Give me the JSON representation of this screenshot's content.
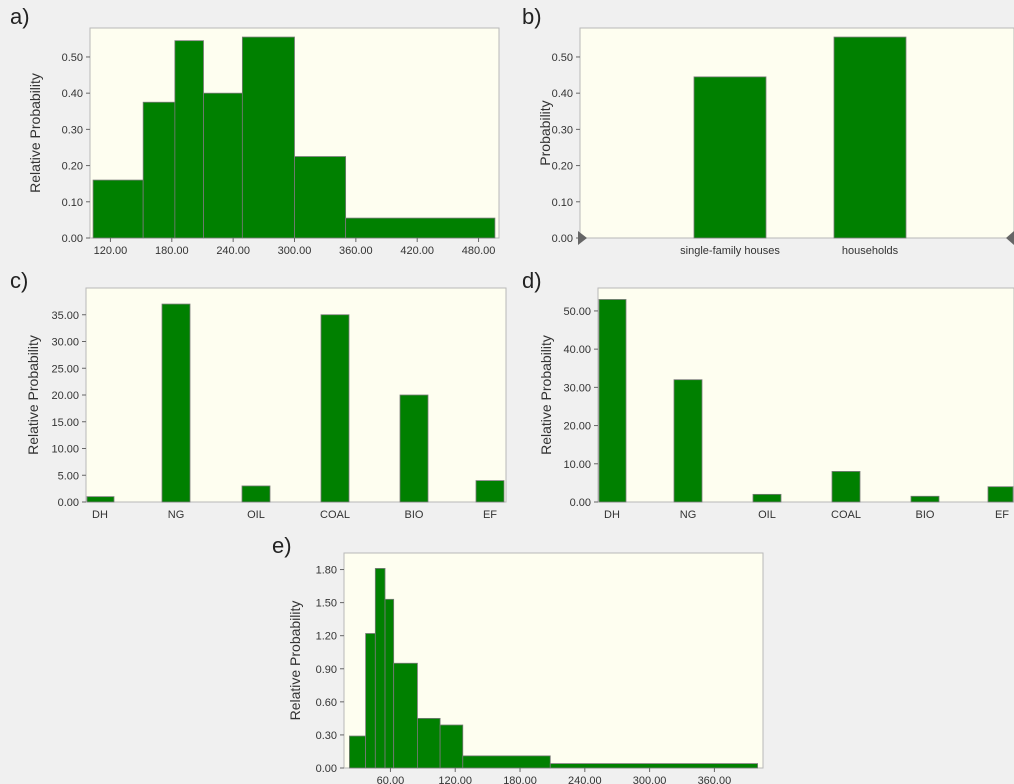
{
  "colors": {
    "bar": "#008000",
    "plot_background": "#fefef0",
    "page_background": "#f0f0f0"
  },
  "chart_data": [
    {
      "id": "a",
      "panel_label": "a)",
      "type": "histogram",
      "ylabel": "Relative Probability",
      "xlim": [
        100,
        500
      ],
      "ylim": [
        0,
        0.58
      ],
      "xticks": [
        120,
        180,
        240,
        300,
        360,
        420,
        480
      ],
      "xtick_labels": [
        "120.00",
        "180.00",
        "240.00",
        "300.00",
        "360.00",
        "420.00",
        "480.00"
      ],
      "yticks": [
        0,
        0.1,
        0.2,
        0.3,
        0.4,
        0.5
      ],
      "ytick_labels": [
        "0.00",
        "0.10",
        "0.20",
        "0.30",
        "0.40",
        "0.50"
      ],
      "bins": [
        {
          "x0": 103,
          "x1": 152,
          "value": 0.16
        },
        {
          "x0": 152,
          "x1": 183,
          "value": 0.375
        },
        {
          "x0": 183,
          "x1": 211,
          "value": 0.545
        },
        {
          "x0": 211,
          "x1": 249,
          "value": 0.4
        },
        {
          "x0": 249,
          "x1": 300,
          "value": 0.555
        },
        {
          "x0": 300,
          "x1": 350,
          "value": 0.225
        },
        {
          "x0": 350,
          "x1": 496,
          "value": 0.055
        }
      ]
    },
    {
      "id": "b",
      "panel_label": "b)",
      "type": "bar",
      "ylabel": "Probability",
      "ylim": [
        0,
        0.58
      ],
      "yticks": [
        0,
        0.1,
        0.2,
        0.3,
        0.4,
        0.5
      ],
      "ytick_labels": [
        "0.00",
        "0.10",
        "0.20",
        "0.30",
        "0.40",
        "0.50"
      ],
      "categories": [
        "single-family houses",
        "households"
      ],
      "values": [
        0.445,
        0.555
      ]
    },
    {
      "id": "c",
      "panel_label": "c)",
      "type": "bar",
      "ylabel": "Relative Probability",
      "ylim": [
        0,
        40
      ],
      "yticks": [
        0,
        5,
        10,
        15,
        20,
        25,
        30,
        35
      ],
      "ytick_labels": [
        "0.00",
        "5.00",
        "10.00",
        "15.00",
        "20.00",
        "25.00",
        "30.00",
        "35.00"
      ],
      "categories": [
        "DH",
        "NG",
        "OIL",
        "COAL",
        "BIO",
        "EF"
      ],
      "values": [
        1,
        37,
        3,
        35,
        20,
        4
      ]
    },
    {
      "id": "d",
      "panel_label": "d)",
      "type": "bar",
      "ylabel": "Relative Probability",
      "ylim": [
        0,
        56
      ],
      "yticks": [
        0,
        10,
        20,
        30,
        40,
        50
      ],
      "ytick_labels": [
        "0.00",
        "10.00",
        "20.00",
        "30.00",
        "40.00",
        "50.00"
      ],
      "categories": [
        "DH",
        "NG",
        "OIL",
        "COAL",
        "BIO",
        "EF"
      ],
      "values": [
        53,
        32,
        2,
        8,
        1.5,
        4
      ]
    },
    {
      "id": "e",
      "panel_label": "e)",
      "type": "histogram",
      "ylabel": "Relative Probability",
      "xlim": [
        17,
        405
      ],
      "ylim": [
        0,
        1.95
      ],
      "xticks": [
        60,
        120,
        180,
        240,
        300,
        360
      ],
      "xtick_labels": [
        "60.00",
        "120.00",
        "180.00",
        "240.00",
        "300.00",
        "360.00"
      ],
      "yticks": [
        0,
        0.3,
        0.6,
        0.9,
        1.2,
        1.5,
        1.8
      ],
      "ytick_labels": [
        "0.00",
        "0.30",
        "0.60",
        "0.90",
        "1.20",
        "1.50",
        "1.80"
      ],
      "bins": [
        {
          "x0": 22,
          "x1": 37,
          "value": 0.29
        },
        {
          "x0": 37,
          "x1": 46,
          "value": 1.22
        },
        {
          "x0": 46,
          "x1": 55,
          "value": 1.81
        },
        {
          "x0": 55,
          "x1": 63,
          "value": 1.53
        },
        {
          "x0": 63,
          "x1": 85,
          "value": 0.95
        },
        {
          "x0": 85,
          "x1": 106,
          "value": 0.45
        },
        {
          "x0": 106,
          "x1": 127,
          "value": 0.39
        },
        {
          "x0": 127,
          "x1": 208,
          "value": 0.11
        },
        {
          "x0": 208,
          "x1": 400,
          "value": 0.04
        }
      ]
    }
  ]
}
